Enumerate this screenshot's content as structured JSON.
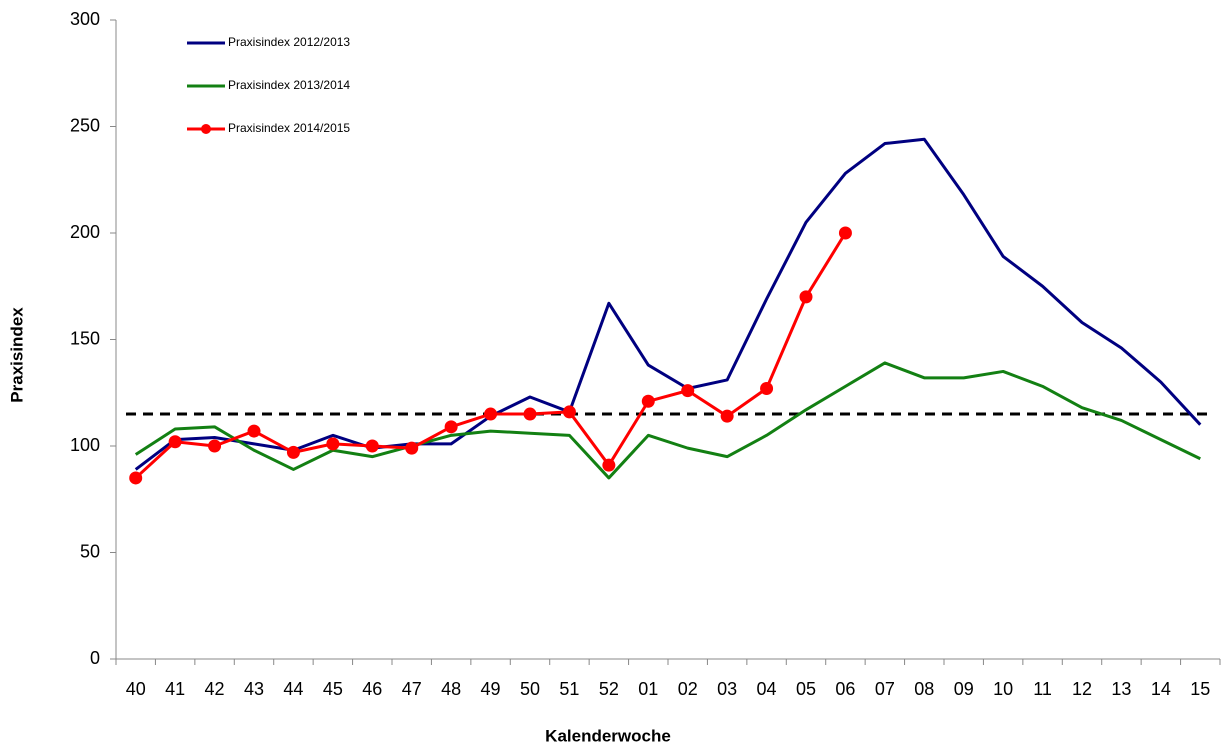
{
  "chart_data": {
    "type": "line",
    "x_label": "Kalenderwoche",
    "y_label": "Praxisindex",
    "categories": [
      "40",
      "41",
      "42",
      "43",
      "44",
      "45",
      "46",
      "47",
      "48",
      "49",
      "50",
      "51",
      "52",
      "01",
      "02",
      "03",
      "04",
      "05",
      "06",
      "07",
      "08",
      "09",
      "10",
      "11",
      "12",
      "13",
      "14",
      "15"
    ],
    "series": [
      {
        "name": "Praxisindex 2012/2013",
        "color": "#000080",
        "markers": false,
        "values": [
          89,
          103,
          104,
          101,
          98,
          105,
          99,
          101,
          101,
          114,
          123,
          116,
          167,
          138,
          127,
          131,
          169,
          205,
          228,
          242,
          244,
          218,
          189,
          175,
          158,
          146,
          130,
          110
        ]
      },
      {
        "name": "Praxisindex 2013/2014",
        "color": "#138013",
        "markers": false,
        "values": [
          96,
          108,
          109,
          98,
          89,
          98,
          95,
          100,
          105,
          107,
          106,
          105,
          85,
          105,
          99,
          95,
          105,
          117,
          128,
          139,
          132,
          132,
          135,
          128,
          118,
          112,
          103,
          94
        ]
      },
      {
        "name": "Praxisindex 2014/2015",
        "color": "#ff0000",
        "markers": true,
        "values": [
          85,
          102,
          100,
          107,
          97,
          101,
          100,
          99,
          109,
          115,
          115,
          116,
          91,
          121,
          126,
          114,
          127,
          170,
          200,
          null,
          null,
          null,
          null,
          null,
          null,
          null,
          null,
          null
        ]
      }
    ],
    "threshold": 115,
    "ylim": [
      0,
      300
    ],
    "yticks": [
      0,
      50,
      100,
      150,
      200,
      250,
      300
    ],
    "legend": "upper-left",
    "grid": false
  }
}
